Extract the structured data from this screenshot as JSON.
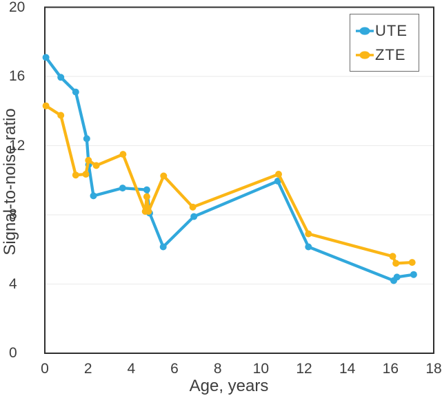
{
  "chart_data": {
    "type": "line",
    "title": "",
    "xlabel": "Age, years",
    "ylabel": "Signal-to-noise ratio",
    "xlim": [
      0,
      18
    ],
    "ylim": [
      0,
      20
    ],
    "xticks": [
      0,
      2,
      4,
      6,
      8,
      10,
      12,
      14,
      16,
      18
    ],
    "yticks": [
      0,
      4,
      8,
      12,
      16,
      20
    ],
    "grid": "horizontal-only",
    "legend_position": "top-right-inside",
    "colors": {
      "border": "#2e2e2e",
      "gridline": "#ededed",
      "text": "#3d3d3d",
      "legend_border": "#6b6b6b",
      "background": "#ffffff"
    },
    "series": [
      {
        "name": "UTE",
        "color": "#31a8dc",
        "x": [
          0.05,
          0.74,
          1.43,
          1.94,
          2.03,
          2.25,
          3.6,
          4.72,
          4.85,
          5.48,
          6.9,
          10.78,
          12.2,
          16.15,
          16.3,
          17.07
        ],
        "y": [
          17.1,
          15.95,
          15.1,
          12.4,
          10.9,
          9.1,
          9.55,
          9.45,
          8.1,
          6.15,
          7.9,
          9.95,
          6.15,
          4.2,
          4.4,
          4.55
        ]
      },
      {
        "name": "ZTE",
        "color": "#fbb616",
        "x": [
          0.05,
          0.74,
          1.43,
          1.9,
          2.02,
          2.38,
          3.62,
          4.65,
          4.72,
          4.8,
          5.5,
          6.85,
          10.82,
          12.2,
          16.1,
          16.25,
          17.0
        ],
        "y": [
          14.3,
          13.75,
          10.3,
          10.35,
          11.15,
          10.85,
          11.5,
          8.2,
          9.05,
          8.2,
          10.25,
          8.45,
          10.35,
          6.9,
          5.6,
          5.2,
          5.25
        ]
      }
    ]
  }
}
